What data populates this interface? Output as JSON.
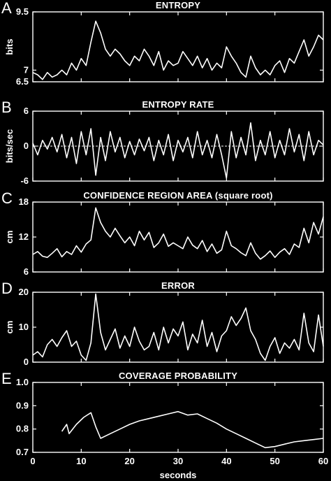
{
  "figure": {
    "background": "#000000",
    "foreground": "#ffffff"
  },
  "chart_data": [
    {
      "type": "line",
      "panel_letter": "A",
      "title": "ENTROPY",
      "xlabel": "",
      "ylabel": "bits",
      "xlim": [
        0,
        60
      ],
      "ylim": [
        6.5,
        9.5
      ],
      "yticks": [
        6.5,
        7,
        9.5
      ],
      "grid": false,
      "series": [
        {
          "x": [
            0,
            1,
            2,
            3,
            4,
            5,
            6,
            7,
            8,
            9,
            10,
            11,
            12,
            13,
            14,
            15,
            16,
            17,
            18,
            19,
            20,
            21,
            22,
            23,
            24,
            25,
            26,
            27,
            28,
            29,
            30,
            31,
            32,
            33,
            34,
            35,
            36,
            37,
            38,
            39,
            40,
            41,
            42,
            43,
            44,
            45,
            46,
            47,
            48,
            49,
            50,
            51,
            52,
            53,
            54,
            55,
            56,
            57,
            58,
            59,
            60
          ],
          "values": [
            6.9,
            6.8,
            6.6,
            6.9,
            6.7,
            6.8,
            7.0,
            6.8,
            7.3,
            7.0,
            7.5,
            7.2,
            8.2,
            9.1,
            8.6,
            7.9,
            7.6,
            7.9,
            7.7,
            7.4,
            7.2,
            7.6,
            7.4,
            7.9,
            7.6,
            7.2,
            7.8,
            7.0,
            7.4,
            7.2,
            7.3,
            7.8,
            7.5,
            7.2,
            7.6,
            7.1,
            7.5,
            7.0,
            7.3,
            7.1,
            8.0,
            7.6,
            7.3,
            6.9,
            6.7,
            7.6,
            7.1,
            6.8,
            7.0,
            6.8,
            7.2,
            7.4,
            6.9,
            7.5,
            7.3,
            7.8,
            8.3,
            7.6,
            8.0,
            8.5,
            8.3
          ]
        }
      ]
    },
    {
      "type": "line",
      "panel_letter": "B",
      "title": "ENTROPY RATE",
      "xlabel": "",
      "ylabel": "bits/sec",
      "xlim": [
        0,
        60
      ],
      "ylim": [
        -6,
        6
      ],
      "yticks": [
        -6,
        0,
        6
      ],
      "zero_line": true,
      "grid": false,
      "series": [
        {
          "x": [
            0,
            1,
            2,
            3,
            4,
            5,
            6,
            7,
            8,
            9,
            10,
            11,
            12,
            13,
            14,
            15,
            16,
            17,
            18,
            19,
            20,
            21,
            22,
            23,
            24,
            25,
            26,
            27,
            28,
            29,
            30,
            31,
            32,
            33,
            34,
            35,
            36,
            37,
            38,
            39,
            40,
            41,
            42,
            43,
            44,
            45,
            46,
            47,
            48,
            49,
            50,
            51,
            52,
            53,
            54,
            55,
            56,
            57,
            58,
            59,
            60
          ],
          "values": [
            0.5,
            -1.5,
            1.0,
            -0.5,
            1.5,
            -1.0,
            2.0,
            -2.0,
            1.5,
            -3.0,
            2.5,
            -1.5,
            3.0,
            -5.0,
            1.5,
            -2.5,
            2.5,
            -1.0,
            1.5,
            -2.0,
            0.8,
            -1.5,
            1.2,
            -0.8,
            1.5,
            -2.5,
            1.0,
            -1.5,
            2.0,
            -2.5,
            1.0,
            -1.0,
            1.5,
            -2.0,
            2.5,
            -1.5,
            1.0,
            -2.0,
            2.0,
            -1.5,
            -5.5,
            2.5,
            -2.0,
            1.5,
            -1.5,
            4.0,
            -2.5,
            1.0,
            -1.5,
            2.5,
            -2.0,
            1.0,
            -1.5,
            3.0,
            -1.0,
            2.0,
            -2.5,
            2.5,
            -1.5,
            1.0,
            0.2
          ]
        }
      ]
    },
    {
      "type": "line",
      "panel_letter": "C",
      "title": "CONFIDENCE REGION AREA (square root)",
      "xlabel": "",
      "ylabel": "cm",
      "xlim": [
        0,
        60
      ],
      "ylim": [
        6,
        18
      ],
      "yticks": [
        6,
        12,
        18
      ],
      "grid": false,
      "series": [
        {
          "x": [
            0,
            1,
            2,
            3,
            4,
            5,
            6,
            7,
            8,
            9,
            10,
            11,
            12,
            13,
            14,
            15,
            16,
            17,
            18,
            19,
            20,
            21,
            22,
            23,
            24,
            25,
            26,
            27,
            28,
            29,
            30,
            31,
            32,
            33,
            34,
            35,
            36,
            37,
            38,
            39,
            40,
            41,
            42,
            43,
            44,
            45,
            46,
            47,
            48,
            49,
            50,
            51,
            52,
            53,
            54,
            55,
            56,
            57,
            58,
            59,
            60
          ],
          "values": [
            9.0,
            9.5,
            8.7,
            8.5,
            9.2,
            10.0,
            8.6,
            9.5,
            9.0,
            10.5,
            9.4,
            10.8,
            11.5,
            17.0,
            14.5,
            13.0,
            12.0,
            13.5,
            12.2,
            11.0,
            12.0,
            10.5,
            13.0,
            11.5,
            12.8,
            10.2,
            11.0,
            12.5,
            10.4,
            11.0,
            10.5,
            10.0,
            12.0,
            10.6,
            10.0,
            11.4,
            9.5,
            10.8,
            9.2,
            9.8,
            13.0,
            10.5,
            10.0,
            9.3,
            8.8,
            11.0,
            9.2,
            8.2,
            8.8,
            9.6,
            8.5,
            9.4,
            10.0,
            9.0,
            10.8,
            10.2,
            13.5,
            11.0,
            14.5,
            12.5,
            15.5
          ]
        }
      ]
    },
    {
      "type": "line",
      "panel_letter": "D",
      "title": "ERROR",
      "xlabel": "",
      "ylabel": "cm",
      "xlim": [
        0,
        60
      ],
      "ylim": [
        0,
        20
      ],
      "yticks": [
        0,
        10,
        20
      ],
      "grid": false,
      "series": [
        {
          "x": [
            0,
            1,
            2,
            3,
            4,
            5,
            6,
            7,
            8,
            9,
            10,
            11,
            12,
            13,
            14,
            15,
            16,
            17,
            18,
            19,
            20,
            21,
            22,
            23,
            24,
            25,
            26,
            27,
            28,
            29,
            30,
            31,
            32,
            33,
            34,
            35,
            36,
            37,
            38,
            39,
            40,
            41,
            42,
            43,
            44,
            45,
            46,
            47,
            48,
            49,
            50,
            51,
            52,
            53,
            54,
            55,
            56,
            57,
            58,
            59,
            60
          ],
          "values": [
            2.0,
            3.0,
            1.5,
            5.0,
            6.5,
            4.5,
            7.0,
            9.0,
            4.5,
            6.0,
            2.0,
            0.5,
            5.5,
            19.5,
            8.5,
            3.5,
            6.5,
            9.5,
            4.0,
            7.5,
            4.5,
            10.0,
            6.0,
            3.5,
            4.5,
            8.5,
            3.5,
            10.0,
            5.5,
            9.5,
            7.5,
            11.5,
            3.5,
            8.0,
            5.5,
            12.0,
            4.5,
            8.5,
            3.0,
            7.5,
            9.0,
            13.0,
            10.5,
            12.5,
            15.5,
            9.0,
            6.5,
            2.5,
            0.5,
            4.5,
            7.0,
            2.5,
            5.5,
            4.0,
            6.5,
            3.5,
            14.0,
            5.5,
            3.0,
            13.5,
            4.5
          ]
        }
      ]
    },
    {
      "type": "line",
      "panel_letter": "E",
      "title": "COVERAGE PROBABILITY",
      "xlabel": "seconds",
      "ylabel": "",
      "xlim": [
        0,
        60
      ],
      "ylim": [
        0.7,
        1.0
      ],
      "yticks": [
        0.7,
        0.8,
        0.9,
        1.0
      ],
      "ytick_labels": [
        "0.7",
        "0.8",
        "0.9",
        "1.0"
      ],
      "xticks": [
        0,
        10,
        20,
        30,
        40,
        50,
        60
      ],
      "grid": false,
      "series": [
        {
          "x": [
            6.0,
            7.0,
            7.5,
            9.0,
            10.5,
            12.0,
            13.0,
            14.0,
            16.0,
            18.0,
            20.0,
            22.0,
            24.0,
            26.0,
            28.0,
            30.0,
            32.0,
            34.0,
            36.0,
            38.0,
            40.0,
            42.0,
            44.0,
            46.0,
            48.0,
            50.0,
            52.0,
            54.0,
            56.0,
            58.0,
            60.0
          ],
          "values": [
            0.79,
            0.82,
            0.78,
            0.82,
            0.85,
            0.87,
            0.81,
            0.76,
            0.78,
            0.8,
            0.82,
            0.835,
            0.845,
            0.855,
            0.865,
            0.875,
            0.86,
            0.865,
            0.845,
            0.825,
            0.8,
            0.78,
            0.76,
            0.74,
            0.72,
            0.725,
            0.735,
            0.745,
            0.75,
            0.755,
            0.76
          ]
        }
      ]
    }
  ]
}
